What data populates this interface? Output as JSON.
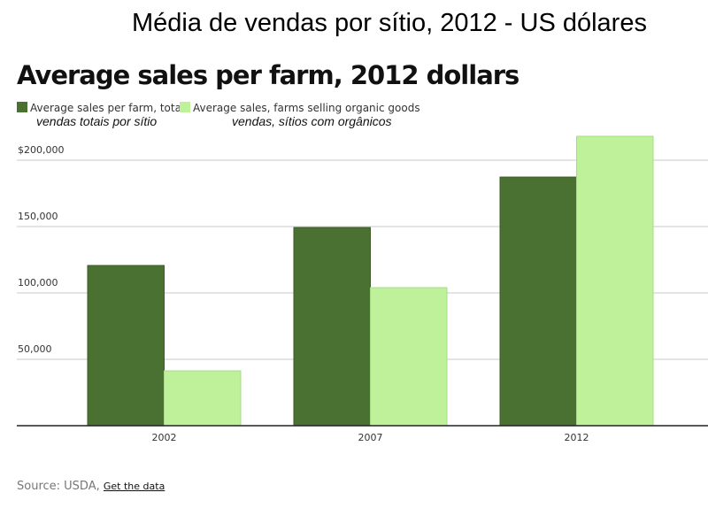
{
  "header": {
    "title_pt": "Média de vendas por sítio,  2012 -  US dólares"
  },
  "chart_data": {
    "type": "bar",
    "title": "Average sales per farm, 2012 dollars",
    "categories": [
      "2002",
      "2007",
      "2012"
    ],
    "series": [
      {
        "name": "Average sales per farm, total",
        "name_pt": "vendas totais por sítio",
        "color": "#4a7032",
        "values": [
          120700,
          149300,
          187300
        ]
      },
      {
        "name": "Average sales, farms selling organic goods",
        "name_pt": "vendas, sítios com orgânicos",
        "color": "#bef19a",
        "values": [
          41300,
          104000,
          218000
        ]
      }
    ],
    "yticks": [
      50000,
      100000,
      150000,
      200000
    ],
    "ytick_labels": [
      "50,000",
      "100,000",
      "150,000",
      "$200,000"
    ],
    "ylim": [
      0,
      200000
    ],
    "grid": true,
    "legend": "top-left"
  },
  "footer": {
    "source_label": "Source: USDA,",
    "link_label": "Get the data"
  }
}
